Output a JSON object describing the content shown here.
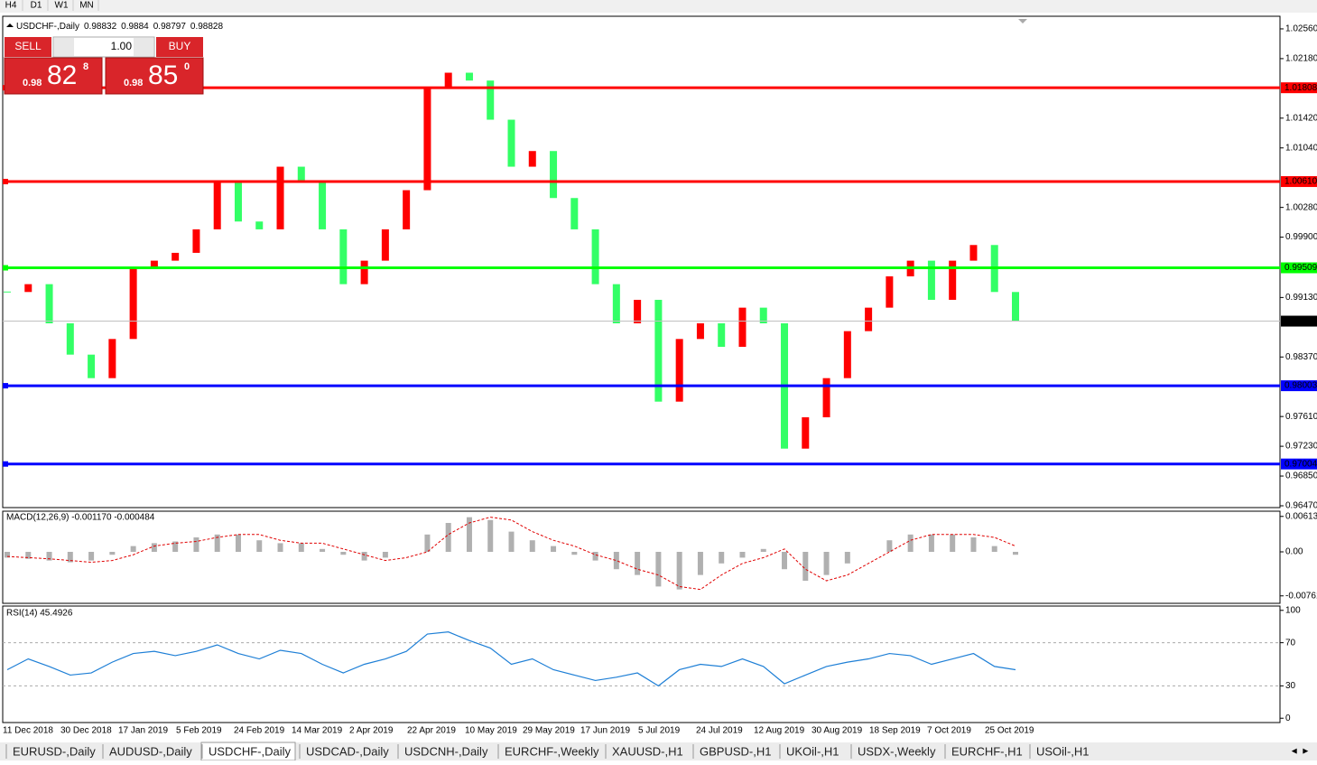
{
  "toolbar": {
    "timeframes": [
      "H4",
      "D1",
      "W1",
      "MN"
    ]
  },
  "trade_panel": {
    "sell_label": "SELL",
    "buy_label": "BUY",
    "lot": "1.00",
    "sell": {
      "big": "0.98",
      "main": "82",
      "sup": "8"
    },
    "buy": {
      "big": "0.98",
      "main": "85",
      "sup": "0"
    }
  },
  "tabs": {
    "items": [
      "EURUSD-,Daily",
      "AUDUSD-,Daily",
      "USDCHF-,Daily",
      "USDCAD-,Daily",
      "USDCNH-,Daily",
      "EURCHF-,Weekly",
      "XAUUSD-,H1",
      "GBPUSD-,H1",
      "UKOil-,H1",
      "USDX-,Weekly",
      "EURCHF-,H1",
      "USOil-,H1"
    ],
    "active": 2
  },
  "chart_data": [
    {
      "type": "candlestick",
      "title": "USDCHF-,Daily",
      "quote": [
        0.98832,
        0.9884,
        0.98797,
        0.98828
      ],
      "categories": [
        "11 Dec 2018",
        "30 Dec 2018",
        "17 Jan 2019",
        "5 Feb 2019",
        "24 Feb 2019",
        "14 Mar 2019",
        "2 Apr 2019",
        "22 Apr 2019",
        "10 May 2019",
        "29 May 2019",
        "17 Jun 2019",
        "5 Jul 2019",
        "24 Jul 2019",
        "12 Aug 2019",
        "30 Aug 2019",
        "18 Sep 2019",
        "7 Oct 2019",
        "25 Oct 2019"
      ],
      "closes": [
        0.992,
        0.993,
        0.988,
        0.984,
        0.981,
        0.986,
        0.995,
        0.996,
        0.997,
        1.0,
        1.006,
        1.001,
        1.0,
        1.008,
        1.006,
        1.0,
        0.993,
        0.996,
        1.0,
        1.005,
        1.018,
        1.02,
        1.019,
        1.014,
        1.008,
        1.01,
        1.004,
        1.0,
        0.993,
        0.988,
        0.991,
        0.978,
        0.986,
        0.988,
        0.985,
        0.99,
        0.988,
        0.972,
        0.976,
        0.981,
        0.987,
        0.99,
        0.994,
        0.996,
        0.991,
        0.996,
        0.998,
        0.992,
        0.9883
      ],
      "up_color": "#ff0000",
      "down_color": "#33ff66",
      "ylim": [
        0.96447,
        1.02721
      ],
      "yticks": [
        {
          "value": 1.0256,
          "label": "1.02560"
        },
        {
          "value": 1.0218,
          "label": "1.02180"
        },
        {
          "value": 1.0142,
          "label": "1.01420"
        },
        {
          "value": 1.0104,
          "label": "1.01040"
        },
        {
          "value": 1.0028,
          "label": "1.00280"
        },
        {
          "value": 0.999,
          "label": "0.99900"
        },
        {
          "value": 0.9913,
          "label": "0.99130"
        },
        {
          "value": 0.9837,
          "label": "0.98370"
        },
        {
          "value": 0.9761,
          "label": "0.97610"
        },
        {
          "value": 0.9723,
          "label": "0.97230"
        },
        {
          "value": 0.9685,
          "label": "0.96850"
        },
        {
          "value": 0.9647,
          "label": "0.96470"
        }
      ],
      "levels": [
        {
          "value": 1.01808,
          "label": "1.01808",
          "color": "#ff0000"
        },
        {
          "value": 1.0061,
          "label": "1.00610",
          "color": "#ff0000"
        },
        {
          "value": 0.99509,
          "label": "0.99509",
          "color": "#00ff00"
        },
        {
          "value": 0.98003,
          "label": "0.98003",
          "color": "#0000ff"
        },
        {
          "value": 0.97004,
          "label": "0.97004",
          "color": "#0000ff"
        }
      ]
    },
    {
      "type": "macd",
      "title": "MACD(12,26,9) -0.001170 -0.000484",
      "ylim": [
        -0.0089,
        0.00703
      ],
      "yticks": [
        {
          "value": 0.00613,
          "label": "0.00613"
        },
        {
          "value": 0,
          "label": "0.00"
        },
        {
          "value": -0.00761,
          "label": "-0.00761"
        }
      ],
      "series": [
        {
          "color": "#b0b0b0",
          "values": [
            -0.001,
            -0.0012,
            -0.0015,
            -0.0018,
            -0.0015,
            -0.0005,
            0.001,
            0.0015,
            0.0018,
            0.0025,
            0.003,
            0.003,
            0.002,
            0.0015,
            0.0015,
            0.0005,
            -0.0005,
            -0.0015,
            -0.001,
            0,
            0.003,
            0.005,
            0.006,
            0.0055,
            0.0035,
            0.002,
            0.001,
            -0.0005,
            -0.0015,
            -0.003,
            -0.004,
            -0.006,
            -0.0065,
            -0.004,
            -0.002,
            -0.001,
            0.0005,
            -0.003,
            -0.005,
            -0.004,
            -0.002,
            0,
            0.002,
            0.003,
            0.003,
            0.003,
            0.0025,
            0.001,
            -0.0005
          ]
        },
        {
          "color": "#e00000",
          "values": [
            -0.0008,
            -0.001,
            -0.0012,
            -0.0015,
            -0.0018,
            -0.0015,
            -0.0005,
            0.001,
            0.0015,
            0.0018,
            0.0025,
            0.003,
            0.003,
            0.002,
            0.0015,
            0.0015,
            0.0005,
            -0.0005,
            -0.0015,
            -0.001,
            0,
            0.003,
            0.005,
            0.006,
            0.0055,
            0.0035,
            0.002,
            0.001,
            -0.0005,
            -0.0015,
            -0.003,
            -0.004,
            -0.006,
            -0.0065,
            -0.004,
            -0.002,
            -0.001,
            0.0005,
            -0.003,
            -0.005,
            -0.004,
            -0.002,
            0,
            0.002,
            0.003,
            0.003,
            0.003,
            0.0025,
            0.001
          ]
        }
      ]
    },
    {
      "type": "line",
      "title": "RSI(14) 45.4926",
      "ylim": [
        -4,
        104
      ],
      "yticks": [
        0,
        30,
        70,
        100
      ],
      "levels": [
        30,
        70
      ],
      "series": [
        {
          "color": "#1e7fd6",
          "values": [
            45,
            55,
            48,
            40,
            42,
            52,
            60,
            62,
            58,
            62,
            68,
            60,
            55,
            63,
            60,
            50,
            42,
            50,
            55,
            62,
            78,
            80,
            72,
            65,
            50,
            55,
            45,
            40,
            35,
            38,
            42,
            30,
            45,
            50,
            48,
            55,
            48,
            32,
            40,
            48,
            52,
            55,
            60,
            58,
            50,
            55,
            60,
            48,
            45
          ]
        }
      ]
    }
  ]
}
